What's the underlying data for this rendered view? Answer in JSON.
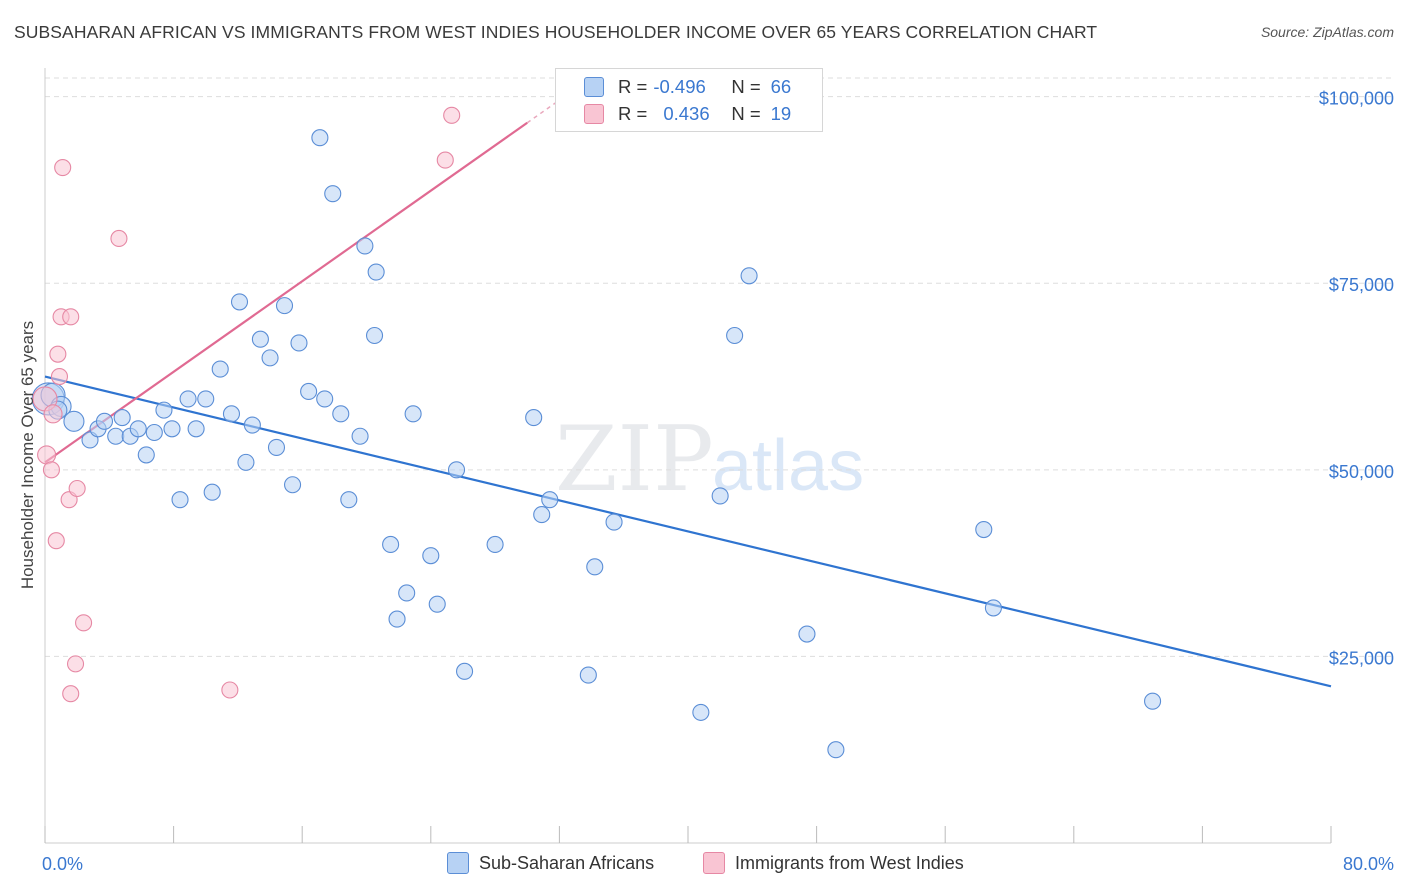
{
  "title": "SUBSAHARAN AFRICAN VS IMMIGRANTS FROM WEST INDIES HOUSEHOLDER INCOME OVER 65 YEARS CORRELATION CHART",
  "source": "Source: ZipAtlas.com",
  "watermark": "ZIPatlas",
  "colors": {
    "blue_fill": "#b7d2f4",
    "blue_stroke": "#5b8ed6",
    "blue_line": "#2f74d0",
    "pink_fill": "#f9c5d3",
    "pink_stroke": "#e688a4",
    "pink_line": "#e06a92",
    "grid": "#dddddd",
    "axis_text": "#3a78d0"
  },
  "stats": {
    "blue": {
      "r_label": "R =",
      "r_value": "-0.496",
      "n_label": "N =",
      "n_value": "66"
    },
    "pink": {
      "r_label": "R =",
      "r_value": "0.436",
      "n_label": "N =",
      "n_value": "19"
    }
  },
  "legend": {
    "blue": "Sub-Saharan Africans",
    "pink": "Immigrants from West Indies"
  },
  "chart_data": {
    "type": "scatter",
    "title": "SUBSAHARAN AFRICAN VS IMMIGRANTS FROM WEST INDIES HOUSEHOLDER INCOME OVER 65 YEARS CORRELATION CHART",
    "xlabel": "",
    "ylabel": "Householder Income Over 65 years",
    "xlim": [
      0,
      80
    ],
    "ylim": [
      0,
      102500
    ],
    "x_tick_labels": [
      "0.0%",
      "80.0%"
    ],
    "y_ticks": [
      25000,
      50000,
      75000,
      100000
    ],
    "y_tick_labels": [
      "$25,000",
      "$50,000",
      "$75,000",
      "$100,000"
    ],
    "grid": true,
    "legend_position": "bottom",
    "series": [
      {
        "name": "Sub-Saharan Africans",
        "color": "#5b8ed6",
        "points": [
          [
            0.2,
            59500,
            16
          ],
          [
            0.5,
            60000,
            12
          ],
          [
            1.0,
            58500,
            10
          ],
          [
            1.8,
            56500,
            10
          ],
          [
            2.8,
            54000,
            8
          ],
          [
            3.3,
            55500,
            8
          ],
          [
            3.7,
            56500,
            8
          ],
          [
            4.4,
            54500,
            8
          ],
          [
            4.8,
            57000,
            8
          ],
          [
            5.3,
            54500,
            8
          ],
          [
            5.8,
            55500,
            8
          ],
          [
            6.3,
            52000,
            8
          ],
          [
            6.8,
            55000,
            8
          ],
          [
            7.4,
            58000,
            8
          ],
          [
            7.9,
            55500,
            8
          ],
          [
            8.4,
            46000,
            8
          ],
          [
            8.9,
            59500,
            8
          ],
          [
            9.4,
            55500,
            8
          ],
          [
            10.0,
            59500,
            8
          ],
          [
            10.4,
            47000,
            8
          ],
          [
            10.9,
            63500,
            8
          ],
          [
            11.6,
            57500,
            8
          ],
          [
            12.1,
            72500,
            8
          ],
          [
            12.5,
            51000,
            8
          ],
          [
            12.9,
            56000,
            8
          ],
          [
            13.4,
            67500,
            8
          ],
          [
            14.0,
            65000,
            8
          ],
          [
            14.4,
            53000,
            8
          ],
          [
            14.9,
            72000,
            8
          ],
          [
            15.4,
            48000,
            8
          ],
          [
            15.8,
            67000,
            8
          ],
          [
            16.4,
            60500,
            8
          ],
          [
            17.1,
            94500,
            8
          ],
          [
            17.4,
            59500,
            8
          ],
          [
            17.9,
            87000,
            8
          ],
          [
            18.4,
            57500,
            8
          ],
          [
            18.9,
            46000,
            8
          ],
          [
            19.6,
            54500,
            8
          ],
          [
            19.9,
            80000,
            8
          ],
          [
            20.6,
            76500,
            8
          ],
          [
            20.5,
            68000,
            8
          ],
          [
            21.5,
            40000,
            8
          ],
          [
            21.9,
            30000,
            8
          ],
          [
            22.5,
            33500,
            8
          ],
          [
            22.9,
            57500,
            8
          ],
          [
            24.0,
            38500,
            8
          ],
          [
            24.4,
            32000,
            8
          ],
          [
            25.6,
            50000,
            8
          ],
          [
            26.1,
            23000,
            8
          ],
          [
            28.0,
            40000,
            8
          ],
          [
            30.4,
            57000,
            8
          ],
          [
            30.9,
            44000,
            8
          ],
          [
            31.4,
            46000,
            8
          ],
          [
            33.8,
            22500,
            8
          ],
          [
            34.2,
            37000,
            8
          ],
          [
            35.4,
            43000,
            8
          ],
          [
            40.8,
            17500,
            8
          ],
          [
            42.0,
            46500,
            8
          ],
          [
            42.9,
            68000,
            8
          ],
          [
            43.8,
            76000,
            8
          ],
          [
            47.4,
            28000,
            8
          ],
          [
            49.2,
            12500,
            8
          ],
          [
            58.4,
            42000,
            8
          ],
          [
            59.0,
            31500,
            8
          ],
          [
            68.9,
            19000,
            8
          ],
          [
            0.8,
            58000,
            9
          ]
        ]
      },
      {
        "name": "Immigrants from West Indies",
        "color": "#e688a4",
        "points": [
          [
            0.0,
            59500,
            12
          ],
          [
            0.1,
            52000,
            9
          ],
          [
            0.4,
            50000,
            8
          ],
          [
            0.7,
            40500,
            8
          ],
          [
            0.8,
            65500,
            8
          ],
          [
            0.9,
            62500,
            8
          ],
          [
            1.0,
            70500,
            8
          ],
          [
            1.1,
            90500,
            8
          ],
          [
            1.5,
            46000,
            8
          ],
          [
            1.6,
            70500,
            8
          ],
          [
            1.6,
            20000,
            8
          ],
          [
            1.9,
            24000,
            8
          ],
          [
            2.0,
            47500,
            8
          ],
          [
            2.4,
            29500,
            8
          ],
          [
            4.6,
            81000,
            8
          ],
          [
            11.5,
            20500,
            8
          ],
          [
            24.9,
            91500,
            8
          ],
          [
            25.3,
            97500,
            8
          ],
          [
            0.5,
            57500,
            9
          ]
        ]
      }
    ],
    "trend_lines": [
      {
        "series": "Sub-Saharan Africans",
        "x": [
          0,
          80
        ],
        "y": [
          62500,
          21000
        ]
      },
      {
        "series": "Immigrants from West Indies",
        "x": [
          0,
          30
        ],
        "y": [
          51000,
          96500
        ]
      }
    ]
  }
}
